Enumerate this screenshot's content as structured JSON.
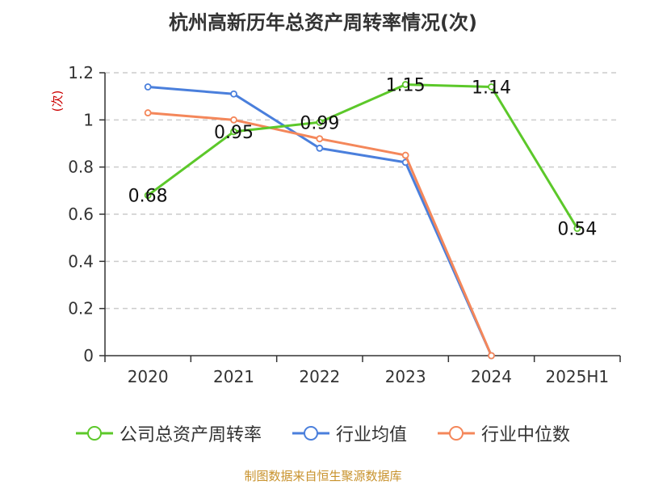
{
  "title": "杭州高新历年总资产周转率情况(次)",
  "source": "制图数据来自恒生聚源数据库",
  "chart_data": {
    "type": "line",
    "title": "杭州高新历年总资产周转率情况(次)",
    "ylabel": "(次)",
    "categories": [
      "2020",
      "2021",
      "2022",
      "2023",
      "2024",
      "2025H1"
    ],
    "ylim": [
      0,
      1.2
    ],
    "yticks": [
      0,
      0.2,
      0.4,
      0.6,
      0.8,
      1,
      1.2
    ],
    "ytick_labels": [
      "0",
      "0.2",
      "0.4",
      "0.6",
      "0.8",
      "1",
      "1.2"
    ],
    "grid": true,
    "legend_position": "bottom",
    "series": [
      {
        "name": "公司总资产周转率",
        "color": "#5cc82a",
        "values": [
          0.68,
          0.95,
          0.99,
          1.15,
          1.14,
          0.54
        ],
        "labels": [
          "0.68",
          "0.95",
          "0.99",
          "1.15",
          "1.14",
          "0.54"
        ],
        "show_labels": true
      },
      {
        "name": "行业均值",
        "color": "#4a7fdc",
        "values": [
          1.14,
          1.11,
          0.88,
          0.82,
          0,
          null
        ],
        "show_labels": false
      },
      {
        "name": "行业中位数",
        "color": "#f4875a",
        "values": [
          1.03,
          1.0,
          0.92,
          0.85,
          0,
          null
        ],
        "show_labels": false
      }
    ]
  }
}
